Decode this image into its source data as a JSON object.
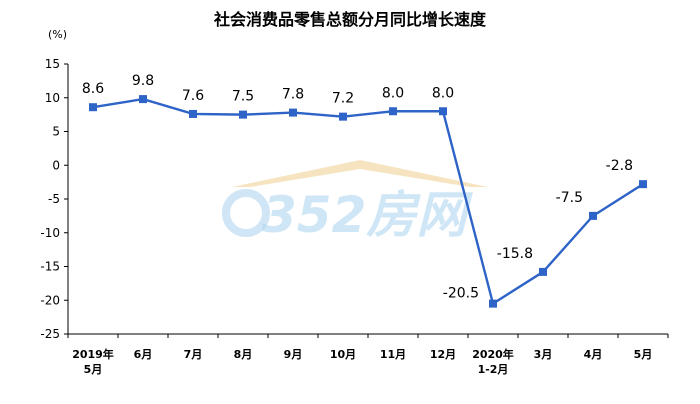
{
  "chart_data": {
    "type": "line",
    "title": "社会消费品零售总额分月同比增长速度",
    "ylabel": "(%)",
    "xlabel": "",
    "ylim": [
      -25,
      15
    ],
    "yticks": [
      15,
      10,
      5,
      0,
      -5,
      -10,
      -15,
      -20,
      -25
    ],
    "categories": [
      [
        "2019年",
        "5月"
      ],
      [
        "6月"
      ],
      [
        "7月"
      ],
      [
        "8月"
      ],
      [
        "9月"
      ],
      [
        "10月"
      ],
      [
        "11月"
      ],
      [
        "12月"
      ],
      [
        "2020年",
        "1-2月"
      ],
      [
        "3月"
      ],
      [
        "4月"
      ],
      [
        "5月"
      ]
    ],
    "series": [
      {
        "values": [
          8.6,
          9.8,
          7.6,
          7.5,
          7.8,
          7.2,
          8.0,
          8.0,
          -20.5,
          -15.8,
          -7.5,
          -2.8
        ],
        "labels": [
          "8.6",
          "9.8",
          "7.6",
          "7.5",
          "7.8",
          "7.2",
          "8.0",
          "8.0",
          "-20.5",
          "-15.8",
          "-7.5",
          "-2.8"
        ],
        "color": "#2e63c7"
      }
    ],
    "grid": false,
    "legend": "none"
  },
  "watermark": {
    "text": "352房网",
    "color": "#a9d2ef",
    "roof_color": "#f2d9a6"
  }
}
